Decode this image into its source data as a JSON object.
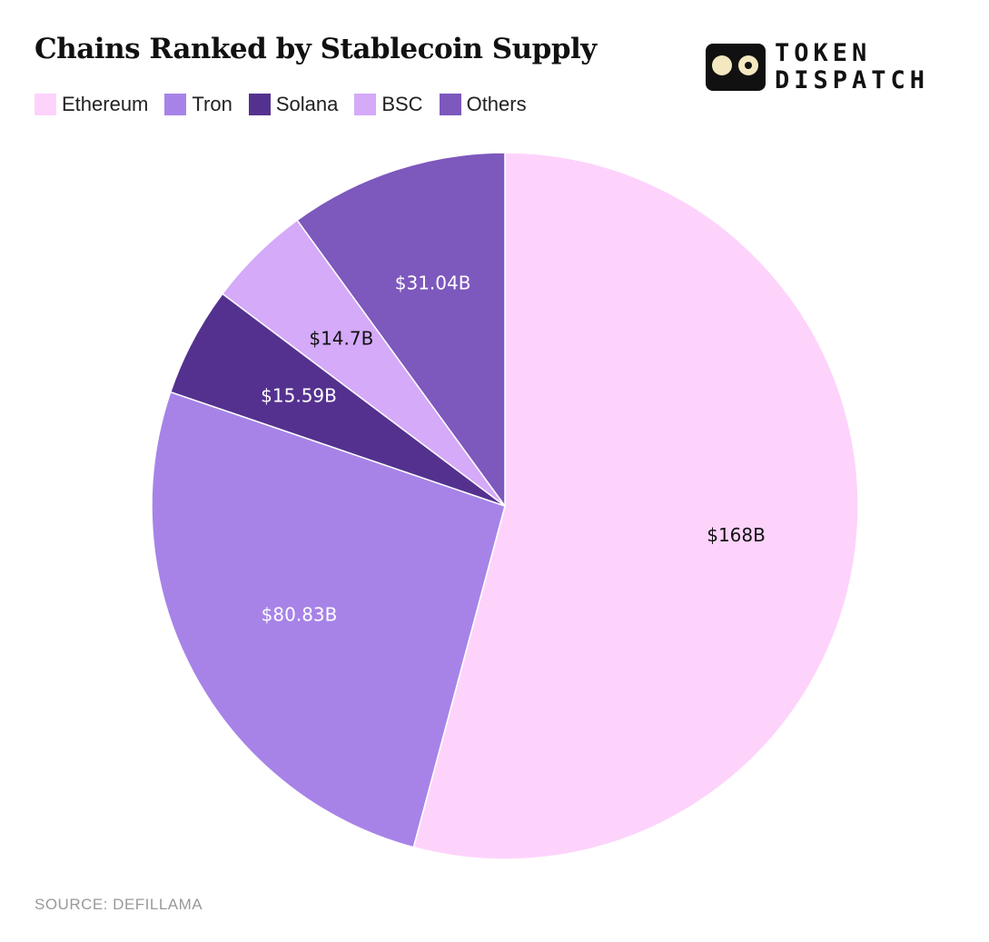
{
  "chart_data": {
    "type": "pie",
    "title": "Chains Ranked by Stablecoin Supply",
    "categories": [
      "Ethereum",
      "Tron",
      "Solana",
      "BSC",
      "Others"
    ],
    "values": [
      168,
      80.83,
      15.59,
      14.7,
      31.04
    ],
    "data_labels": [
      "$168B",
      "$80.83B",
      "$15.59B",
      "$14.7B",
      "$31.04B"
    ],
    "colors": [
      "#fdd3fb",
      "#a783e8",
      "#54318f",
      "#d4aaf9",
      "#7d58bd"
    ],
    "label_colors": [
      "#111111",
      "#ffffff",
      "#ffffff",
      "#111111",
      "#ffffff"
    ],
    "start_angle": "top, clockwise",
    "legend_position": "top-left"
  },
  "logo": {
    "line1": "TOKEN",
    "line2": "DISPATCH"
  },
  "source": "SOURCE: DEFILLAMA"
}
